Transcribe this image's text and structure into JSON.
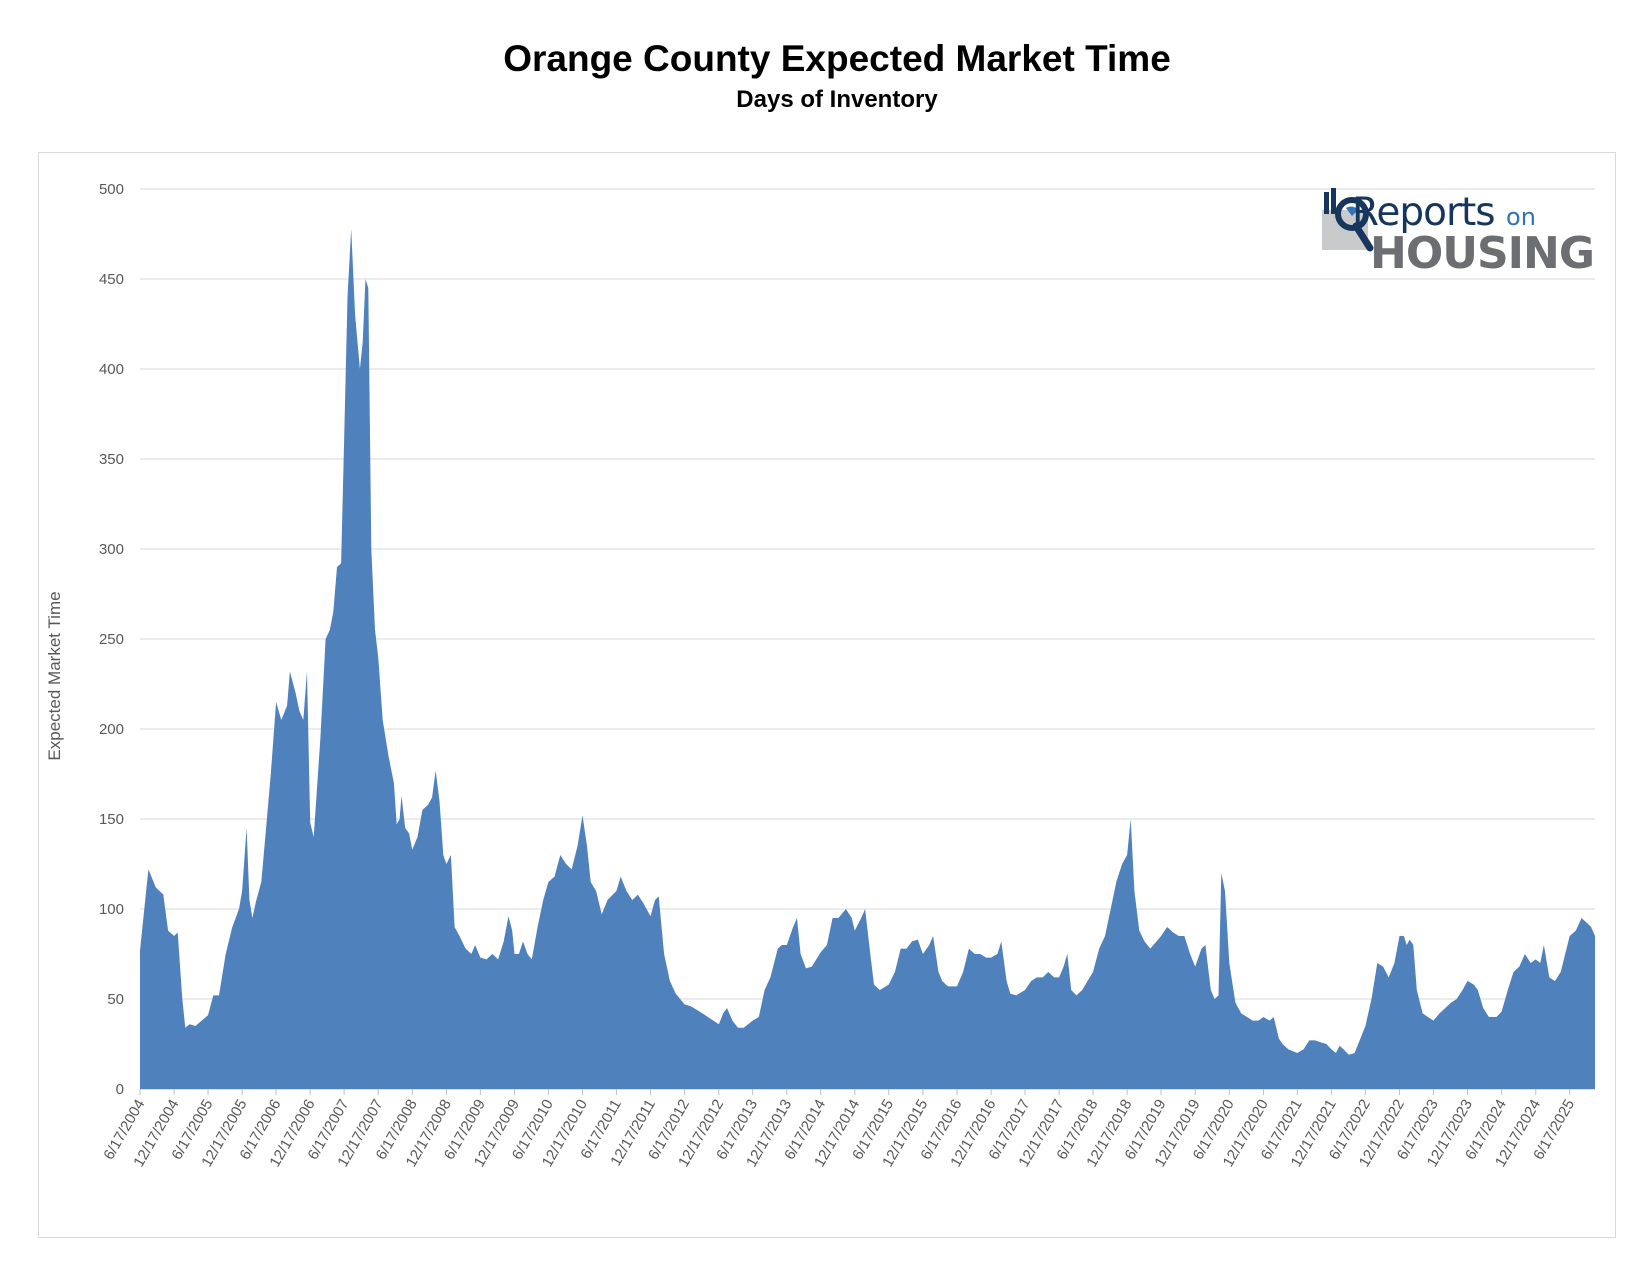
{
  "chart_data": {
    "type": "area",
    "title": "Orange County Expected Market Time",
    "subtitle": "Days of Inventory",
    "ylabel": "Expected Market Time",
    "xlabel": "",
    "ylim": [
      0,
      500
    ],
    "yticks": [
      0,
      50,
      100,
      150,
      200,
      250,
      300,
      350,
      400,
      450,
      500
    ],
    "grid": true,
    "legend": "none",
    "series_color": "#4f81bd",
    "x_start": "6/17/2004",
    "x_end": "10/31/2025",
    "xtick_labels": [
      "6/17/2004",
      "12/17/2004",
      "6/17/2005",
      "12/17/2005",
      "6/17/2006",
      "12/17/2006",
      "6/17/2007",
      "12/17/2007",
      "6/17/2008",
      "12/17/2008",
      "6/17/2009",
      "12/17/2009",
      "6/17/2010",
      "12/17/2010",
      "6/17/2011",
      "12/17/2011",
      "6/17/2012",
      "12/17/2012",
      "6/17/2013",
      "12/17/2013",
      "6/17/2014",
      "12/17/2014",
      "6/17/2015",
      "12/17/2015",
      "6/17/2016",
      "12/17/2016",
      "6/17/2017",
      "12/17/2017",
      "6/17/2018",
      "12/17/2018",
      "6/17/2019",
      "12/17/2019",
      "6/17/2020",
      "12/17/2020",
      "6/17/2021",
      "12/17/2021",
      "6/17/2022",
      "12/17/2022",
      "6/17/2023",
      "12/17/2023",
      "6/17/2024",
      "12/17/2024",
      "6/17/2025"
    ],
    "points": [
      [
        "6/17/2004",
        77
      ],
      [
        "8/1/2004",
        122
      ],
      [
        "9/10/2004",
        112
      ],
      [
        "10/20/2004",
        108
      ],
      [
        "11/15/2004",
        88
      ],
      [
        "12/17/2004",
        85
      ],
      [
        "1/5/2005",
        87
      ],
      [
        "1/30/2005",
        50
      ],
      [
        "2/15/2005",
        34
      ],
      [
        "3/10/2005",
        36
      ],
      [
        "4/10/2005",
        35
      ],
      [
        "6/17/2005",
        41
      ],
      [
        "7/15/2005",
        52
      ],
      [
        "8/15/2005",
        52
      ],
      [
        "9/20/2005",
        75
      ],
      [
        "10/25/2005",
        90
      ],
      [
        "11/30/2005",
        100
      ],
      [
        "12/17/2005",
        110
      ],
      [
        "1/10/2006",
        145
      ],
      [
        "1/25/2006",
        105
      ],
      [
        "2/10/2006",
        95
      ],
      [
        "3/1/2006",
        104
      ],
      [
        "3/30/2006",
        115
      ],
      [
        "4/20/2006",
        140
      ],
      [
        "5/20/2006",
        175
      ],
      [
        "6/17/2006",
        215
      ],
      [
        "7/15/2006",
        205
      ],
      [
        "8/15/2006",
        213
      ],
      [
        "8/30/2006",
        232
      ],
      [
        "9/30/2006",
        220
      ],
      [
        "10/20/2006",
        210
      ],
      [
        "11/10/2006",
        205
      ],
      [
        "11/30/2006",
        232
      ],
      [
        "12/17/2006",
        148
      ],
      [
        "1/5/2007",
        140
      ],
      [
        "2/10/2007",
        195
      ],
      [
        "3/10/2007",
        250
      ],
      [
        "4/1/2007",
        255
      ],
      [
        "4/20/2007",
        265
      ],
      [
        "5/10/2007",
        290
      ],
      [
        "6/1/2007",
        292
      ],
      [
        "6/17/2007",
        360
      ],
      [
        "7/5/2007",
        440
      ],
      [
        "7/25/2007",
        478
      ],
      [
        "8/15/2007",
        430
      ],
      [
        "9/10/2007",
        400
      ],
      [
        "9/25/2007",
        415
      ],
      [
        "10/10/2007",
        450
      ],
      [
        "10/25/2007",
        445
      ],
      [
        "11/10/2007",
        300
      ],
      [
        "11/30/2007",
        255
      ],
      [
        "12/17/2007",
        240
      ],
      [
        "1/10/2008",
        205
      ],
      [
        "2/10/2008",
        185
      ],
      [
        "3/10/2008",
        170
      ],
      [
        "3/25/2008",
        147
      ],
      [
        "4/10/2008",
        150
      ],
      [
        "4/20/2008",
        163
      ],
      [
        "5/10/2008",
        145
      ],
      [
        "5/30/2008",
        142
      ],
      [
        "6/17/2008",
        133
      ],
      [
        "7/15/2008",
        140
      ],
      [
        "8/10/2008",
        155
      ],
      [
        "9/10/2008",
        158
      ],
      [
        "10/1/2008",
        162
      ],
      [
        "10/20/2008",
        177
      ],
      [
        "11/10/2008",
        160
      ],
      [
        "11/30/2008",
        130
      ],
      [
        "12/17/2008",
        125
      ],
      [
        "1/10/2009",
        130
      ],
      [
        "1/30/2009",
        90
      ],
      [
        "2/25/2009",
        85
      ],
      [
        "3/30/2009",
        78
      ],
      [
        "4/30/2009",
        75
      ],
      [
        "5/20/2009",
        80
      ],
      [
        "6/17/2009",
        73
      ],
      [
        "7/20/2009",
        72
      ],
      [
        "8/20/2009",
        75
      ],
      [
        "9/20/2009",
        72
      ],
      [
        "10/20/2009",
        82
      ],
      [
        "11/15/2009",
        96
      ],
      [
        "12/5/2009",
        88
      ],
      [
        "12/17/2009",
        75
      ],
      [
        "1/10/2010",
        75
      ],
      [
        "2/1/2010",
        82
      ],
      [
        "2/25/2010",
        75
      ],
      [
        "3/20/2010",
        72
      ],
      [
        "4/20/2010",
        90
      ],
      [
        "5/20/2010",
        105
      ],
      [
        "6/17/2010",
        115
      ],
      [
        "7/20/2010",
        118
      ],
      [
        "8/20/2010",
        130
      ],
      [
        "9/20/2010",
        125
      ],
      [
        "10/20/2010",
        122
      ],
      [
        "11/20/2010",
        135
      ],
      [
        "12/17/2010",
        152
      ],
      [
        "1/10/2011",
        135
      ],
      [
        "1/30/2011",
        115
      ],
      [
        "2/28/2011",
        110
      ],
      [
        "3/30/2011",
        97
      ],
      [
        "4/30/2011",
        105
      ],
      [
        "6/17/2011",
        110
      ],
      [
        "7/10/2011",
        118
      ],
      [
        "8/10/2011",
        110
      ],
      [
        "9/10/2011",
        105
      ],
      [
        "10/10/2011",
        108
      ],
      [
        "11/10/2011",
        103
      ],
      [
        "12/17/2011",
        96
      ],
      [
        "1/10/2012",
        105
      ],
      [
        "1/30/2012",
        107
      ],
      [
        "2/28/2012",
        75
      ],
      [
        "3/30/2012",
        60
      ],
      [
        "4/30/2012",
        53
      ],
      [
        "6/17/2012",
        47
      ],
      [
        "7/20/2012",
        46
      ],
      [
        "8/20/2012",
        44
      ],
      [
        "9/20/2012",
        42
      ],
      [
        "10/20/2012",
        40
      ],
      [
        "12/17/2012",
        36
      ],
      [
        "1/10/2013",
        42
      ],
      [
        "1/30/2013",
        45
      ],
      [
        "2/28/2013",
        38
      ],
      [
        "3/30/2013",
        34
      ],
      [
        "4/30/2013",
        34
      ],
      [
        "6/17/2013",
        38
      ],
      [
        "7/20/2013",
        40
      ],
      [
        "8/20/2013",
        55
      ],
      [
        "9/20/2013",
        62
      ],
      [
        "10/30/2013",
        78
      ],
      [
        "11/20/2013",
        80
      ],
      [
        "12/17/2013",
        80
      ],
      [
        "1/20/2014",
        90
      ],
      [
        "2/10/2014",
        95
      ],
      [
        "3/1/2014",
        75
      ],
      [
        "3/30/2014",
        67
      ],
      [
        "4/30/2014",
        68
      ],
      [
        "6/17/2014",
        76
      ],
      [
        "7/20/2014",
        80
      ],
      [
        "8/20/2014",
        95
      ],
      [
        "9/20/2014",
        95
      ],
      [
        "10/30/2014",
        100
      ],
      [
        "11/30/2014",
        95
      ],
      [
        "12/17/2014",
        88
      ],
      [
        "1/20/2015",
        95
      ],
      [
        "2/10/2015",
        100
      ],
      [
        "3/10/2015",
        75
      ],
      [
        "3/30/2015",
        58
      ],
      [
        "4/30/2015",
        55
      ],
      [
        "6/17/2015",
        58
      ],
      [
        "7/20/2015",
        65
      ],
      [
        "8/20/2015",
        78
      ],
      [
        "9/20/2015",
        78
      ],
      [
        "10/20/2015",
        82
      ],
      [
        "11/20/2015",
        83
      ],
      [
        "12/17/2015",
        75
      ],
      [
        "1/20/2016",
        80
      ],
      [
        "2/10/2016",
        85
      ],
      [
        "3/10/2016",
        65
      ],
      [
        "3/30/2016",
        60
      ],
      [
        "4/30/2016",
        57
      ],
      [
        "6/17/2016",
        57
      ],
      [
        "7/20/2016",
        65
      ],
      [
        "8/20/2016",
        78
      ],
      [
        "9/20/2016",
        75
      ],
      [
        "10/20/2016",
        75
      ],
      [
        "11/20/2016",
        73
      ],
      [
        "12/17/2016",
        73
      ],
      [
        "1/20/2017",
        75
      ],
      [
        "2/10/2017",
        82
      ],
      [
        "3/10/2017",
        60
      ],
      [
        "3/30/2017",
        53
      ],
      [
        "4/30/2017",
        52
      ],
      [
        "6/17/2017",
        55
      ],
      [
        "7/20/2017",
        60
      ],
      [
        "8/20/2017",
        62
      ],
      [
        "9/20/2017",
        62
      ],
      [
        "10/20/2017",
        65
      ],
      [
        "11/20/2017",
        62
      ],
      [
        "12/17/2017",
        62
      ],
      [
        "1/10/2018",
        68
      ],
      [
        "1/30/2018",
        75
      ],
      [
        "2/20/2018",
        55
      ],
      [
        "3/20/2018",
        52
      ],
      [
        "4/20/2018",
        55
      ],
      [
        "6/17/2018",
        65
      ],
      [
        "7/20/2018",
        78
      ],
      [
        "8/20/2018",
        85
      ],
      [
        "9/20/2018",
        100
      ],
      [
        "10/20/2018",
        115
      ],
      [
        "11/20/2018",
        125
      ],
      [
        "12/17/2018",
        130
      ],
      [
        "1/5/2019",
        150
      ],
      [
        "1/25/2019",
        110
      ],
      [
        "2/20/2019",
        88
      ],
      [
        "3/20/2019",
        82
      ],
      [
        "4/20/2019",
        78
      ],
      [
        "6/17/2019",
        85
      ],
      [
        "7/20/2019",
        90
      ],
      [
        "8/20/2019",
        87
      ],
      [
        "9/20/2019",
        85
      ],
      [
        "10/20/2019",
        85
      ],
      [
        "11/20/2019",
        75
      ],
      [
        "12/17/2019",
        68
      ],
      [
        "1/20/2020",
        78
      ],
      [
        "2/10/2020",
        80
      ],
      [
        "3/10/2020",
        55
      ],
      [
        "3/30/2020",
        50
      ],
      [
        "4/20/2020",
        52
      ],
      [
        "5/5/2020",
        120
      ],
      [
        "5/25/2020",
        110
      ],
      [
        "6/17/2020",
        70
      ],
      [
        "7/20/2020",
        48
      ],
      [
        "8/20/2020",
        42
      ],
      [
        "9/20/2020",
        40
      ],
      [
        "10/20/2020",
        38
      ],
      [
        "11/20/2020",
        38
      ],
      [
        "12/17/2020",
        40
      ],
      [
        "1/20/2021",
        38
      ],
      [
        "2/10/2021",
        40
      ],
      [
        "3/10/2021",
        28
      ],
      [
        "3/30/2021",
        25
      ],
      [
        "4/30/2021",
        22
      ],
      [
        "6/17/2021",
        20
      ],
      [
        "7/20/2021",
        22
      ],
      [
        "8/20/2021",
        27
      ],
      [
        "9/20/2021",
        27
      ],
      [
        "10/20/2021",
        26
      ],
      [
        "11/20/2021",
        25
      ],
      [
        "12/17/2021",
        22
      ],
      [
        "1/10/2022",
        20
      ],
      [
        "1/30/2022",
        24
      ],
      [
        "2/20/2022",
        22
      ],
      [
        "3/20/2022",
        19
      ],
      [
        "4/20/2022",
        20
      ],
      [
        "6/17/2022",
        35
      ],
      [
        "7/20/2022",
        50
      ],
      [
        "8/20/2022",
        70
      ],
      [
        "9/20/2022",
        68
      ],
      [
        "10/20/2022",
        62
      ],
      [
        "11/20/2022",
        70
      ],
      [
        "12/17/2022",
        85
      ],
      [
        "1/10/2023",
        85
      ],
      [
        "1/25/2023",
        80
      ],
      [
        "2/10/2023",
        83
      ],
      [
        "3/1/2023",
        80
      ],
      [
        "3/20/2023",
        55
      ],
      [
        "4/20/2023",
        42
      ],
      [
        "6/17/2023",
        38
      ],
      [
        "7/20/2023",
        42
      ],
      [
        "8/20/2023",
        45
      ],
      [
        "9/20/2023",
        48
      ],
      [
        "10/20/2023",
        50
      ],
      [
        "11/20/2023",
        55
      ],
      [
        "12/17/2023",
        60
      ],
      [
        "1/20/2024",
        58
      ],
      [
        "2/10/2024",
        55
      ],
      [
        "3/10/2024",
        45
      ],
      [
        "4/10/2024",
        40
      ],
      [
        "5/20/2024",
        40
      ],
      [
        "6/17/2024",
        43
      ],
      [
        "7/20/2024",
        55
      ],
      [
        "8/20/2024",
        65
      ],
      [
        "9/20/2024",
        68
      ],
      [
        "10/20/2024",
        75
      ],
      [
        "11/20/2024",
        70
      ],
      [
        "12/17/2024",
        72
      ],
      [
        "1/10/2025",
        70
      ],
      [
        "1/30/2025",
        80
      ],
      [
        "2/28/2025",
        62
      ],
      [
        "3/30/2025",
        60
      ],
      [
        "4/30/2025",
        65
      ],
      [
        "6/17/2025",
        85
      ],
      [
        "7/20/2025",
        88
      ],
      [
        "8/20/2025",
        95
      ],
      [
        "9/20/2025",
        92
      ],
      [
        "10/10/2025",
        90
      ],
      [
        "10/31/2025",
        85
      ]
    ]
  },
  "logo": {
    "line1": "Reports",
    "line1_suffix": "on",
    "line2": "HOUSING"
  }
}
